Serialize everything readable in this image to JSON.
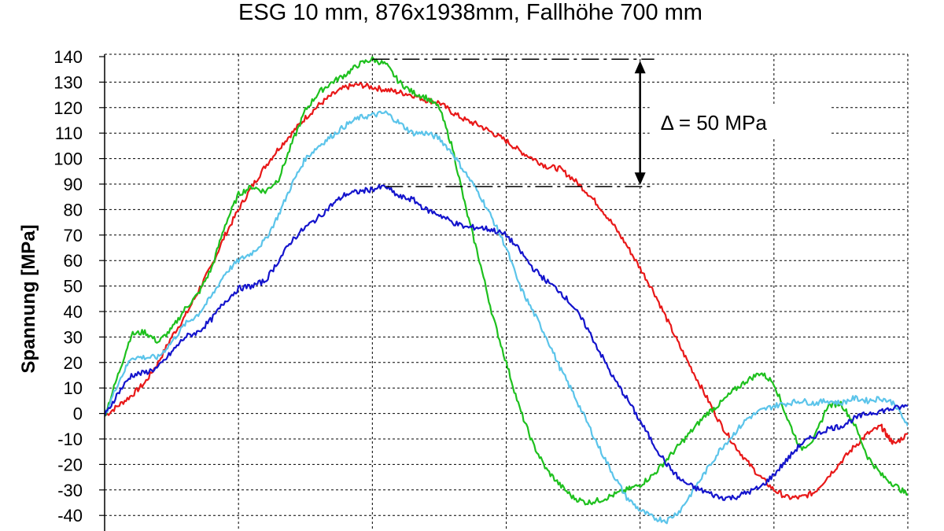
{
  "chart_data": {
    "type": "line",
    "title": "ESG 10 mm, 876x1938mm, Fallhöhe 700 mm",
    "xlabel": "",
    "ylabel": "Spannung [MPa]",
    "xlim": [
      0,
      6
    ],
    "ylim": [
      -50,
      140
    ],
    "y_ticks": [
      140,
      130,
      120,
      110,
      100,
      90,
      80,
      70,
      60,
      50,
      40,
      30,
      20,
      10,
      0,
      -10,
      -20,
      -30,
      -40
    ],
    "grid": true,
    "legend": "none",
    "annotation": {
      "text": "Δ = 50 MPa",
      "upper_value": 139,
      "lower_value": 89,
      "x": 4,
      "upper_line_from_x": 2.0,
      "lower_line_from_x": 2.1
    },
    "series": [
      {
        "color": "#e81818",
        "points": [
          [
            0,
            -1
          ],
          [
            0.1,
            3
          ],
          [
            0.2,
            7
          ],
          [
            0.3,
            12
          ],
          [
            0.4,
            20
          ],
          [
            0.5,
            30
          ],
          [
            0.6,
            38
          ],
          [
            0.7,
            48
          ],
          [
            0.8,
            58
          ],
          [
            0.9,
            70
          ],
          [
            1.0,
            80
          ],
          [
            1.1,
            89
          ],
          [
            1.2,
            97
          ],
          [
            1.3,
            104
          ],
          [
            1.4,
            110
          ],
          [
            1.5,
            116
          ],
          [
            1.6,
            121
          ],
          [
            1.7,
            125
          ],
          [
            1.8,
            128
          ],
          [
            1.9,
            129
          ],
          [
            2.0,
            128
          ],
          [
            2.1,
            127
          ],
          [
            2.2,
            126
          ],
          [
            2.3,
            125
          ],
          [
            2.4,
            123
          ],
          [
            2.5,
            122
          ],
          [
            2.6,
            118
          ],
          [
            2.7,
            115
          ],
          [
            2.8,
            113
          ],
          [
            2.9,
            110
          ],
          [
            3.0,
            107
          ],
          [
            3.1,
            103
          ],
          [
            3.2,
            100
          ],
          [
            3.3,
            97
          ],
          [
            3.4,
            96
          ],
          [
            3.5,
            92
          ],
          [
            3.6,
            87
          ],
          [
            3.7,
            81
          ],
          [
            3.8,
            74
          ],
          [
            3.9,
            66
          ],
          [
            4.0,
            57
          ],
          [
            4.1,
            48
          ],
          [
            4.2,
            37
          ],
          [
            4.3,
            26
          ],
          [
            4.4,
            16
          ],
          [
            4.5,
            6
          ],
          [
            4.6,
            -4
          ],
          [
            4.7,
            -12
          ],
          [
            4.8,
            -19
          ],
          [
            4.9,
            -25
          ],
          [
            5.0,
            -30
          ],
          [
            5.1,
            -33
          ],
          [
            5.2,
            -33
          ],
          [
            5.3,
            -31
          ],
          [
            5.4,
            -25
          ],
          [
            5.5,
            -19
          ],
          [
            5.6,
            -13
          ],
          [
            5.7,
            -8
          ],
          [
            5.8,
            -5
          ],
          [
            5.85,
            -9
          ],
          [
            5.9,
            -12
          ],
          [
            6.0,
            -8
          ]
        ]
      },
      {
        "color": "#1ec01e",
        "points": [
          [
            0,
            -1
          ],
          [
            0.1,
            15
          ],
          [
            0.2,
            31
          ],
          [
            0.3,
            32
          ],
          [
            0.4,
            28
          ],
          [
            0.5,
            33
          ],
          [
            0.6,
            41
          ],
          [
            0.7,
            47
          ],
          [
            0.8,
            57
          ],
          [
            0.9,
            74
          ],
          [
            1.0,
            86
          ],
          [
            1.1,
            89
          ],
          [
            1.2,
            87
          ],
          [
            1.3,
            92
          ],
          [
            1.4,
            106
          ],
          [
            1.5,
            119
          ],
          [
            1.6,
            126
          ],
          [
            1.7,
            130
          ],
          [
            1.8,
            133
          ],
          [
            1.9,
            137
          ],
          [
            2.0,
            139
          ],
          [
            2.1,
            137
          ],
          [
            2.2,
            130
          ],
          [
            2.3,
            126
          ],
          [
            2.4,
            124
          ],
          [
            2.5,
            120
          ],
          [
            2.6,
            104
          ],
          [
            2.7,
            80
          ],
          [
            2.8,
            60
          ],
          [
            2.9,
            38
          ],
          [
            3.0,
            20
          ],
          [
            3.1,
            2
          ],
          [
            3.2,
            -12
          ],
          [
            3.3,
            -22
          ],
          [
            3.4,
            -28
          ],
          [
            3.5,
            -33
          ],
          [
            3.6,
            -35
          ],
          [
            3.7,
            -34
          ],
          [
            3.8,
            -32
          ],
          [
            3.9,
            -30
          ],
          [
            4.0,
            -28
          ],
          [
            4.1,
            -24
          ],
          [
            4.2,
            -18
          ],
          [
            4.3,
            -12
          ],
          [
            4.4,
            -6
          ],
          [
            4.5,
            0
          ],
          [
            4.6,
            4
          ],
          [
            4.7,
            9
          ],
          [
            4.8,
            13
          ],
          [
            4.9,
            16
          ],
          [
            5.0,
            12
          ],
          [
            5.1,
            -2
          ],
          [
            5.2,
            -14
          ],
          [
            5.3,
            -10
          ],
          [
            5.4,
            3
          ],
          [
            5.5,
            4
          ],
          [
            5.6,
            -4
          ],
          [
            5.7,
            -17
          ],
          [
            5.8,
            -24
          ],
          [
            5.9,
            -28
          ],
          [
            6.0,
            -32
          ]
        ]
      },
      {
        "color": "#5bc4ea",
        "points": [
          [
            0,
            -1
          ],
          [
            0.1,
            12
          ],
          [
            0.2,
            22
          ],
          [
            0.3,
            22
          ],
          [
            0.4,
            22
          ],
          [
            0.5,
            28
          ],
          [
            0.6,
            35
          ],
          [
            0.7,
            39
          ],
          [
            0.8,
            46
          ],
          [
            0.9,
            55
          ],
          [
            1.0,
            60
          ],
          [
            1.1,
            63
          ],
          [
            1.2,
            68
          ],
          [
            1.3,
            78
          ],
          [
            1.4,
            90
          ],
          [
            1.5,
            100
          ],
          [
            1.6,
            105
          ],
          [
            1.7,
            109
          ],
          [
            1.8,
            113
          ],
          [
            1.9,
            116
          ],
          [
            2.0,
            117
          ],
          [
            2.1,
            118
          ],
          [
            2.2,
            114
          ],
          [
            2.3,
            110
          ],
          [
            2.4,
            110
          ],
          [
            2.5,
            108
          ],
          [
            2.6,
            102
          ],
          [
            2.7,
            94
          ],
          [
            2.8,
            86
          ],
          [
            2.9,
            76
          ],
          [
            3.0,
            65
          ],
          [
            3.1,
            50
          ],
          [
            3.2,
            40
          ],
          [
            3.3,
            30
          ],
          [
            3.4,
            18
          ],
          [
            3.5,
            8
          ],
          [
            3.6,
            -3
          ],
          [
            3.7,
            -14
          ],
          [
            3.8,
            -24
          ],
          [
            3.9,
            -33
          ],
          [
            4.0,
            -38
          ],
          [
            4.1,
            -41
          ],
          [
            4.2,
            -42
          ],
          [
            4.3,
            -38
          ],
          [
            4.4,
            -30
          ],
          [
            4.5,
            -22
          ],
          [
            4.6,
            -14
          ],
          [
            4.7,
            -8
          ],
          [
            4.8,
            -2
          ],
          [
            4.9,
            1
          ],
          [
            5.0,
            3
          ],
          [
            5.1,
            4
          ],
          [
            5.2,
            5
          ],
          [
            5.3,
            4
          ],
          [
            5.4,
            5
          ],
          [
            5.5,
            4
          ],
          [
            5.6,
            6
          ],
          [
            5.7,
            5
          ],
          [
            5.8,
            6
          ],
          [
            5.9,
            4
          ],
          [
            6.0,
            -5
          ]
        ]
      },
      {
        "color": "#1414cc",
        "points": [
          [
            0,
            -1
          ],
          [
            0.1,
            8
          ],
          [
            0.2,
            15
          ],
          [
            0.3,
            16
          ],
          [
            0.4,
            18
          ],
          [
            0.5,
            24
          ],
          [
            0.6,
            30
          ],
          [
            0.7,
            32
          ],
          [
            0.8,
            37
          ],
          [
            0.9,
            44
          ],
          [
            1.0,
            49
          ],
          [
            1.1,
            50
          ],
          [
            1.2,
            52
          ],
          [
            1.3,
            60
          ],
          [
            1.4,
            68
          ],
          [
            1.5,
            73
          ],
          [
            1.6,
            77
          ],
          [
            1.7,
            82
          ],
          [
            1.8,
            86
          ],
          [
            1.9,
            87
          ],
          [
            2.0,
            88
          ],
          [
            2.1,
            89
          ],
          [
            2.2,
            85
          ],
          [
            2.3,
            84
          ],
          [
            2.4,
            80
          ],
          [
            2.5,
            78
          ],
          [
            2.6,
            75
          ],
          [
            2.7,
            73
          ],
          [
            2.8,
            73
          ],
          [
            2.9,
            72
          ],
          [
            3.0,
            70
          ],
          [
            3.1,
            64
          ],
          [
            3.2,
            57
          ],
          [
            3.3,
            52
          ],
          [
            3.4,
            48
          ],
          [
            3.5,
            42
          ],
          [
            3.6,
            34
          ],
          [
            3.7,
            24
          ],
          [
            3.8,
            14
          ],
          [
            3.9,
            6
          ],
          [
            4.0,
            -3
          ],
          [
            4.1,
            -12
          ],
          [
            4.2,
            -20
          ],
          [
            4.3,
            -26
          ],
          [
            4.4,
            -29
          ],
          [
            4.5,
            -31
          ],
          [
            4.6,
            -33
          ],
          [
            4.7,
            -33
          ],
          [
            4.8,
            -31
          ],
          [
            4.9,
            -29
          ],
          [
            5.0,
            -24
          ],
          [
            5.1,
            -18
          ],
          [
            5.2,
            -12
          ],
          [
            5.3,
            -9
          ],
          [
            5.4,
            -6
          ],
          [
            5.5,
            -5
          ],
          [
            5.6,
            -2
          ],
          [
            5.7,
            0
          ],
          [
            5.8,
            1
          ],
          [
            5.9,
            2
          ],
          [
            6.0,
            3
          ]
        ]
      }
    ]
  }
}
